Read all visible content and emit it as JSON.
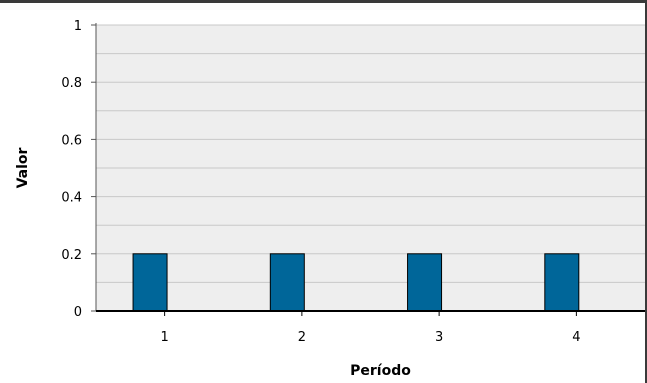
{
  "chart_data": {
    "type": "bar",
    "categories": [
      "1",
      "2",
      "3",
      "4"
    ],
    "series": [
      {
        "values": [
          0.2,
          0.2,
          0.2,
          0.2
        ]
      }
    ],
    "xlabel": "Período",
    "ylabel": "Valor",
    "ylim": [
      0,
      1
    ],
    "yticks": [
      "0",
      "0.2",
      "0.4",
      "0.6",
      "0.8",
      "1"
    ],
    "grid": true,
    "colors": {
      "bar": "#006699",
      "plot_background": "#eeeeee",
      "grid": "#c8c8c8"
    }
  }
}
